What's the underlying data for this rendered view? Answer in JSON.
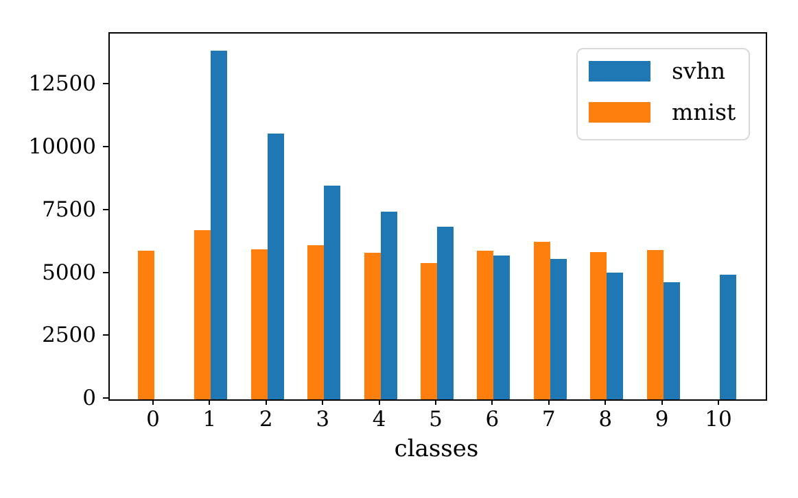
{
  "figure": {
    "background": "#ffffff",
    "text_color": "#000000"
  },
  "chart_data": {
    "type": "bar",
    "title": "",
    "xlabel": "classes",
    "ylabel": "",
    "categories": [
      "0",
      "1",
      "2",
      "3",
      "4",
      "5",
      "6",
      "7",
      "8",
      "9",
      "10"
    ],
    "series": [
      {
        "name": "svhn",
        "color": "#1f77b4",
        "group_side": "right",
        "values": [
          0,
          13861,
          10585,
          8497,
          7458,
          6882,
          5727,
          5595,
          5045,
          4659,
          4948
        ]
      },
      {
        "name": "mnist",
        "color": "#ff7f0e",
        "group_side": "left",
        "values": [
          5923,
          6742,
          5958,
          6131,
          5842,
          5421,
          5918,
          6265,
          5851,
          5949,
          0
        ]
      }
    ],
    "ylim": [
      0,
      14554
    ],
    "yticks": [
      0,
      2500,
      5000,
      7500,
      10000,
      12500
    ],
    "grid": false,
    "legend_position": "upper right"
  }
}
